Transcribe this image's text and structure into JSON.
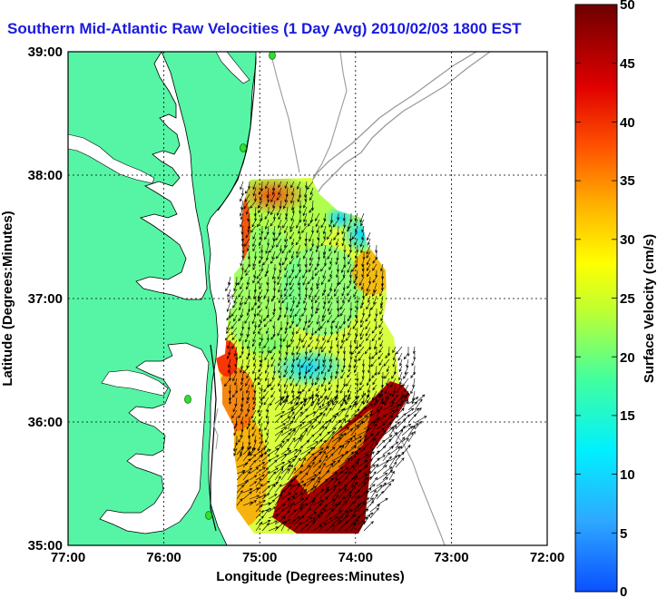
{
  "title": "Southern Mid-Atlantic Raw Velocities (1 Day Avg) 2010/02/03 1800 EST",
  "x_axis": {
    "label": "Longitude (Degrees:Minutes)",
    "ticks": [
      "77:00",
      "76:00",
      "75:00",
      "74:00",
      "73:00",
      "72:00"
    ]
  },
  "y_axis": {
    "label": "Latitude (Degrees:Minutes)",
    "ticks": [
      "39:00",
      "38:00",
      "37:00",
      "36:00",
      "35:00"
    ]
  },
  "colorbar": {
    "label": "Surface Velocity (cm/s)",
    "ticks": [
      "50",
      "45",
      "40",
      "35",
      "30",
      "25",
      "20",
      "15",
      "10",
      "5",
      "0"
    ],
    "min": 0,
    "max": 50
  },
  "colors": {
    "land": "#55f5a5",
    "title": "#1a1adf",
    "station": "#33dd33",
    "bathymetry": "#9a9a9a"
  },
  "map": {
    "lon_range": [
      -77,
      -72
    ],
    "lat_range": [
      35,
      39
    ],
    "grid": true,
    "projection": "equirectangular"
  }
}
